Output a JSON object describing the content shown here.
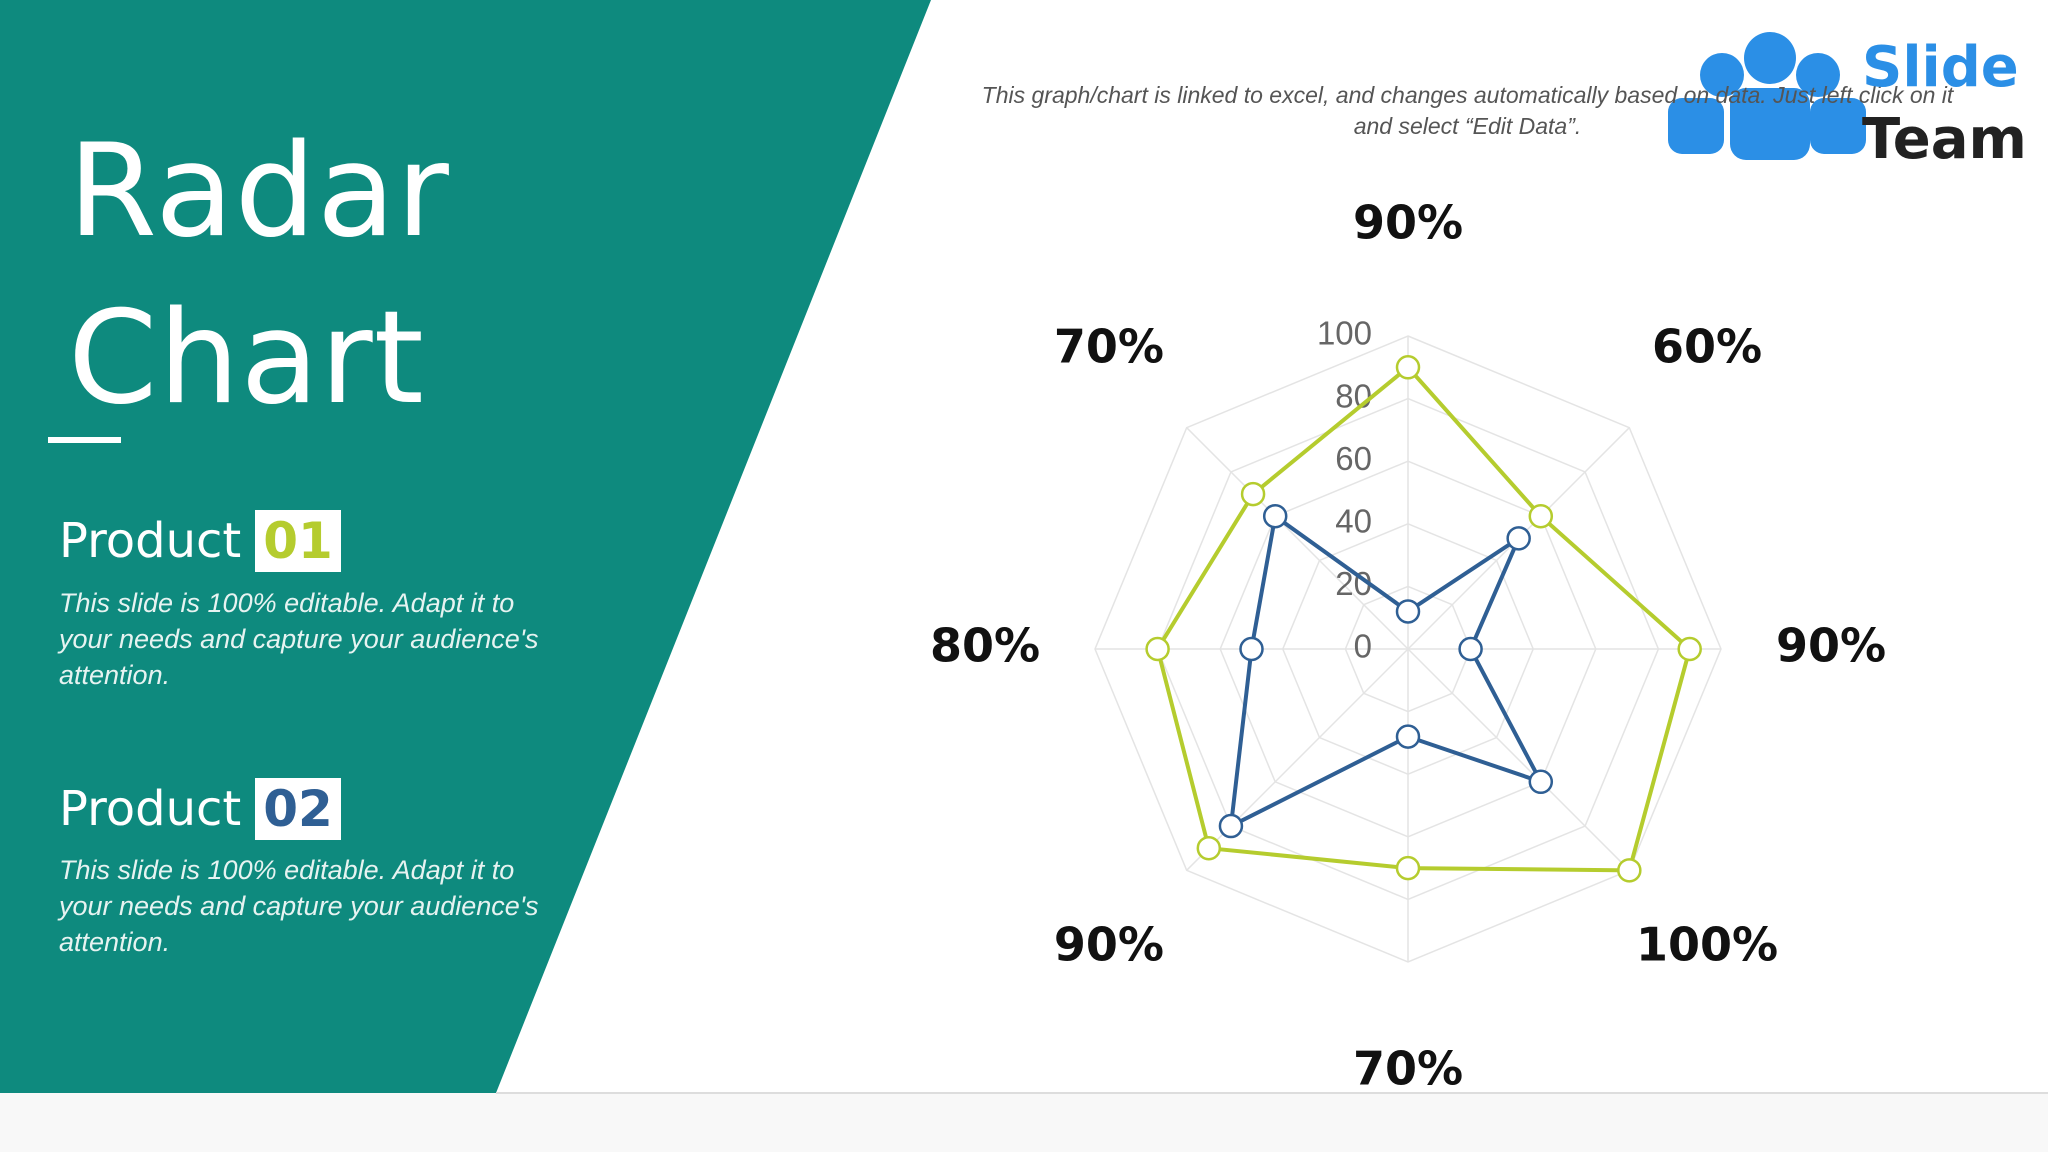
{
  "chart_data": {
    "type": "radar",
    "title": [
      "Radar",
      "Chart"
    ],
    "note": "This graph/chart is linked to excel, and changes automatically based on data. Just left click on it and select “Edit Data”.",
    "categories": [
      "90%",
      "60%",
      "90%",
      "100%",
      "70%",
      "90%",
      "80%",
      "70%"
    ],
    "series": [
      {
        "name": "01",
        "color": "#b5cc2e",
        "values": [
          90,
          60,
          90,
          100,
          70,
          90,
          80,
          70
        ]
      },
      {
        "name": "02",
        "color": "#2f5f94",
        "values": [
          12,
          50,
          20,
          60,
          28,
          80,
          50,
          60
        ]
      }
    ],
    "ylim": [
      0,
      100
    ],
    "yticks": [
      0,
      20,
      40,
      60,
      80,
      100
    ],
    "grid": true
  },
  "panel": {
    "labels": [
      "Product",
      "Product"
    ],
    "descriptions": [
      "This slide is 100% editable. Adapt it to your needs and capture your audience's attention.",
      "This slide is 100% editable. Adapt it to your needs and capture your audience's attention."
    ]
  },
  "logo": {
    "line1": "Slide",
    "line2": "Team"
  }
}
